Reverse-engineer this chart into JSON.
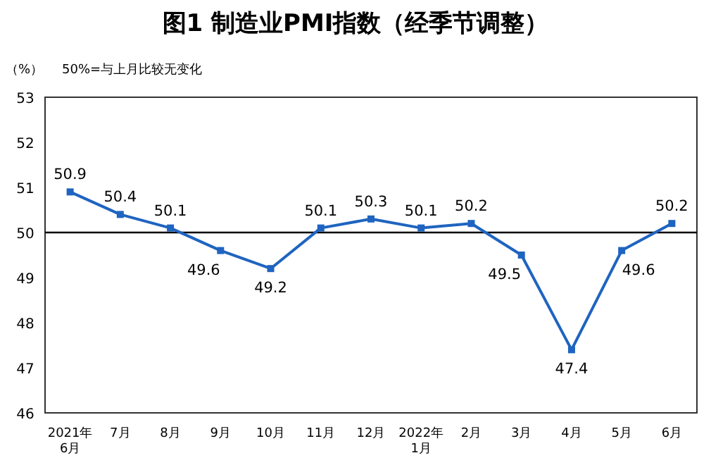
{
  "chart_data": {
    "type": "line",
    "title": "图1 制造业PMI指数（经季节调整）",
    "ylabel": "（%）",
    "annotations": [
      "50%=与上月比较无变化"
    ],
    "categories": [
      "2021年\n6月",
      "7月",
      "8月",
      "9月",
      "10月",
      "11月",
      "12月",
      "2022年\n1月",
      "2月",
      "3月",
      "4月",
      "5月",
      "6月"
    ],
    "series": [
      {
        "color": "#1f64c0",
        "values": [
          50.9,
          50.4,
          50.1,
          49.6,
          49.2,
          50.1,
          50.3,
          50.1,
          50.2,
          49.5,
          47.4,
          49.6,
          50.2
        ]
      }
    ],
    "ylim": [
      46,
      53
    ],
    "yticks": [
      46,
      47,
      48,
      49,
      50,
      51,
      52,
      53
    ],
    "ref_lines": [
      {
        "axis": "y",
        "value": 50,
        "color": "#000000"
      }
    ],
    "data_labels": true,
    "marker": "square",
    "grid": false
  }
}
